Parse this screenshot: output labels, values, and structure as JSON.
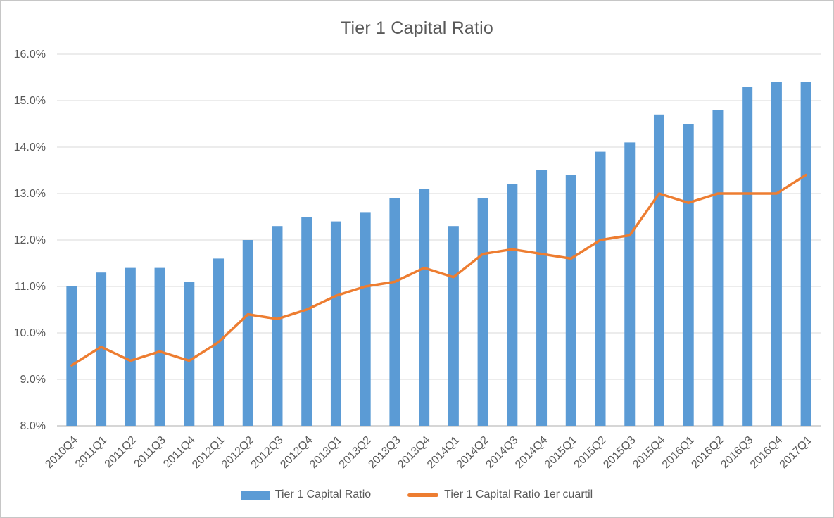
{
  "window": {
    "background_color": "#FFFFFF",
    "border_color": "#C6C6C6"
  },
  "chart_data": {
    "type": "bar",
    "subtype": "bar-with-line-overlay",
    "title": "Tier 1 Capital Ratio",
    "text_color": "#595959",
    "gridline_color": "#D9D9D9",
    "axis_line_color": "#C9C9C9",
    "legend_position": "bottom",
    "grid": "horizontal-on",
    "categories": [
      "2010Q4",
      "2011Q1",
      "2011Q2",
      "2011Q3",
      "2011Q4",
      "2012Q1",
      "2012Q2",
      "2012Q3",
      "2012Q4",
      "2013Q1",
      "2013Q2",
      "2013Q3",
      "2013Q4",
      "2014Q1",
      "2014Q2",
      "2014Q3",
      "2014Q4",
      "2015Q1",
      "2015Q2",
      "2015Q3",
      "2015Q4",
      "2016Q1",
      "2016Q2",
      "2016Q3",
      "2016Q4",
      "2017Q1"
    ],
    "series": [
      {
        "name": "Tier 1 Capital Ratio",
        "type": "bar",
        "color": "#5B9BD5",
        "values": [
          11.0,
          11.3,
          11.4,
          11.4,
          11.1,
          11.6,
          12.0,
          12.3,
          12.5,
          12.4,
          12.6,
          12.9,
          13.1,
          12.3,
          12.9,
          13.2,
          13.5,
          13.4,
          13.9,
          14.1,
          14.7,
          14.5,
          14.8,
          15.3,
          15.4,
          15.4
        ]
      },
      {
        "name": "Tier 1 Capital Ratio 1er cuartil",
        "type": "line",
        "color": "#ED7D31",
        "values": [
          9.3,
          9.7,
          9.4,
          9.6,
          9.4,
          9.8,
          10.4,
          10.3,
          10.5,
          10.8,
          11.0,
          11.1,
          11.4,
          11.2,
          11.7,
          11.8,
          11.7,
          11.6,
          12.0,
          12.1,
          13.0,
          12.8,
          13.0,
          13.0,
          13.0,
          13.4
        ]
      }
    ],
    "y_axis": {
      "min": 8.0,
      "max": 16.0,
      "step": 1.0,
      "tick_labels": [
        "8.0%",
        "9.0%",
        "10.0%",
        "11.0%",
        "12.0%",
        "13.0%",
        "14.0%",
        "15.0%",
        "16.0%"
      ],
      "format": "percent"
    },
    "x_axis": {
      "label_rotation_deg": 45
    }
  }
}
